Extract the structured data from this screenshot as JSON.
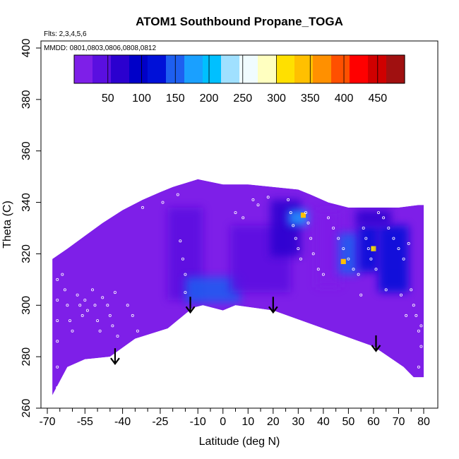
{
  "chart_data": {
    "type": "heatmap",
    "title": "ATOM1 Southbound Propane_TOGA",
    "annotations": {
      "flights": "Flts: 2,3,4,5,6",
      "dates": "MMDD: 0801,0803,0806,0808,0812"
    },
    "xlabel": "Latitude (deg N)",
    "ylabel": "Theta (C)",
    "xlim": [
      -70,
      80
    ],
    "ylim": [
      260,
      400
    ],
    "x_ticks": [
      -70,
      -55,
      -40,
      -25,
      -10,
      0,
      10,
      20,
      30,
      40,
      50,
      60,
      70,
      80
    ],
    "x_minor_ticks": [
      -65,
      -60,
      -50,
      -45,
      -35,
      -30,
      -20,
      -15,
      -5,
      5,
      15,
      25,
      35,
      45,
      55,
      65,
      75
    ],
    "y_ticks": [
      260,
      280,
      300,
      320,
      340,
      360,
      380,
      400
    ],
    "colorbar": {
      "range": [
        0,
        490
      ],
      "ticks": [
        50,
        100,
        150,
        200,
        250,
        300,
        350,
        400,
        450
      ],
      "colors": [
        "#7e1fe8",
        "#5a0fe0",
        "#2b00cf",
        "#0000c8",
        "#0010d8",
        "#1e5ff0",
        "#1aa0ff",
        "#00c0ff",
        "#a0e0ff",
        "#f0fcff",
        "#ffffc0",
        "#ffe000",
        "#ffc000",
        "#ff9000",
        "#ff5000",
        "#ff0000",
        "#d00000",
        "#a01010"
      ]
    },
    "domain_bottom": [
      [
        -68,
        265
      ],
      [
        -62,
        276
      ],
      [
        -55,
        279
      ],
      [
        -45,
        280
      ],
      [
        -35,
        287
      ],
      [
        -22,
        291
      ],
      [
        -12,
        299
      ],
      [
        -8,
        300
      ],
      [
        0,
        298
      ],
      [
        5,
        300
      ],
      [
        20,
        298
      ],
      [
        40,
        291
      ],
      [
        60,
        284
      ],
      [
        72,
        276
      ],
      [
        76,
        272
      ],
      [
        80,
        272
      ]
    ],
    "domain_top": [
      [
        -68,
        318
      ],
      [
        -62,
        322
      ],
      [
        -55,
        327
      ],
      [
        -48,
        332
      ],
      [
        -40,
        337
      ],
      [
        -32,
        341
      ],
      [
        -25,
        344
      ],
      [
        -20,
        346
      ],
      [
        -10,
        349
      ],
      [
        0,
        347
      ],
      [
        10,
        347
      ],
      [
        20,
        346
      ],
      [
        30,
        345
      ],
      [
        35,
        343
      ],
      [
        42,
        340
      ],
      [
        50,
        338
      ],
      [
        60,
        338
      ],
      [
        70,
        338
      ],
      [
        78,
        339
      ],
      [
        80,
        339
      ]
    ],
    "features": [
      {
        "lat": -15,
        "theta": 320,
        "value": 40,
        "w": 14,
        "h": 36
      },
      {
        "lat": -4,
        "theta": 306,
        "value": 150,
        "w": 22,
        "h": 10
      },
      {
        "lat": 15,
        "theta": 318,
        "value": 40,
        "w": 24,
        "h": 26
      },
      {
        "lat": 25,
        "theta": 330,
        "value": 80,
        "w": 12,
        "h": 22
      },
      {
        "lat": 30,
        "theta": 334,
        "value": 175,
        "w": 8,
        "h": 6
      },
      {
        "lat": 32,
        "theta": 335,
        "value": 330,
        "w": 2,
        "h": 2
      },
      {
        "lat": 42,
        "theta": 322,
        "value": 20,
        "w": 10,
        "h": 30
      },
      {
        "lat": 50,
        "theta": 320,
        "value": 140,
        "w": 8,
        "h": 16
      },
      {
        "lat": 48,
        "theta": 317,
        "value": 330,
        "w": 2,
        "h": 2
      },
      {
        "lat": 58,
        "theta": 322,
        "value": 130,
        "w": 8,
        "h": 18
      },
      {
        "lat": 60,
        "theta": 322,
        "value": 320,
        "w": 2,
        "h": 2
      },
      {
        "lat": 68,
        "theta": 318,
        "value": 120,
        "w": 12,
        "h": 26
      },
      {
        "lat": 60,
        "theta": 334,
        "value": 80,
        "w": 14,
        "h": 6
      }
    ],
    "arrows": [
      [
        -43,
        280
      ],
      [
        -13,
        300
      ],
      [
        20,
        300
      ],
      [
        61,
        285
      ]
    ],
    "sample_points": [
      [
        -66,
        310
      ],
      [
        -66,
        302
      ],
      [
        -66,
        294
      ],
      [
        -66,
        286
      ],
      [
        -66,
        276
      ],
      [
        -66,
        268
      ],
      [
        -64,
        312
      ],
      [
        -63,
        306
      ],
      [
        -62,
        300
      ],
      [
        -61,
        294
      ],
      [
        -60,
        290
      ],
      [
        -58,
        304
      ],
      [
        -57,
        300
      ],
      [
        -56,
        296
      ],
      [
        -55,
        302
      ],
      [
        -54,
        298
      ],
      [
        -52,
        306
      ],
      [
        -51,
        300
      ],
      [
        -50,
        294
      ],
      [
        -49,
        290
      ],
      [
        -48,
        303
      ],
      [
        -46,
        300
      ],
      [
        -45,
        296
      ],
      [
        -44,
        292
      ],
      [
        -43,
        305
      ],
      [
        -42,
        288
      ],
      [
        -38,
        300
      ],
      [
        -36,
        296
      ],
      [
        -34,
        290
      ],
      [
        -32,
        338
      ],
      [
        -24,
        340
      ],
      [
        -18,
        343
      ],
      [
        -17,
        325
      ],
      [
        -16,
        318
      ],
      [
        -15,
        312
      ],
      [
        -15,
        305
      ],
      [
        5,
        336
      ],
      [
        8,
        334
      ],
      [
        12,
        341
      ],
      [
        14,
        339
      ],
      [
        18,
        342
      ],
      [
        26,
        341
      ],
      [
        27,
        336
      ],
      [
        28,
        331
      ],
      [
        29,
        326
      ],
      [
        30,
        322
      ],
      [
        31,
        318
      ],
      [
        33,
        336
      ],
      [
        34,
        332
      ],
      [
        35,
        326
      ],
      [
        36,
        320
      ],
      [
        38,
        314
      ],
      [
        40,
        312
      ],
      [
        42,
        334
      ],
      [
        44,
        330
      ],
      [
        46,
        326
      ],
      [
        48,
        322
      ],
      [
        50,
        318
      ],
      [
        52,
        314
      ],
      [
        54,
        312
      ],
      [
        56,
        330
      ],
      [
        57,
        326
      ],
      [
        58,
        322
      ],
      [
        59,
        318
      ],
      [
        61,
        314
      ],
      [
        62,
        336
      ],
      [
        64,
        334
      ],
      [
        66,
        330
      ],
      [
        68,
        326
      ],
      [
        70,
        322
      ],
      [
        72,
        318
      ],
      [
        74,
        324
      ],
      [
        75,
        306
      ],
      [
        76,
        300
      ],
      [
        77,
        296
      ],
      [
        78,
        290
      ],
      [
        79,
        284
      ],
      [
        78,
        276
      ],
      [
        79,
        292
      ],
      [
        73,
        296
      ],
      [
        71,
        304
      ],
      [
        65,
        306
      ],
      [
        55,
        304
      ]
    ]
  }
}
